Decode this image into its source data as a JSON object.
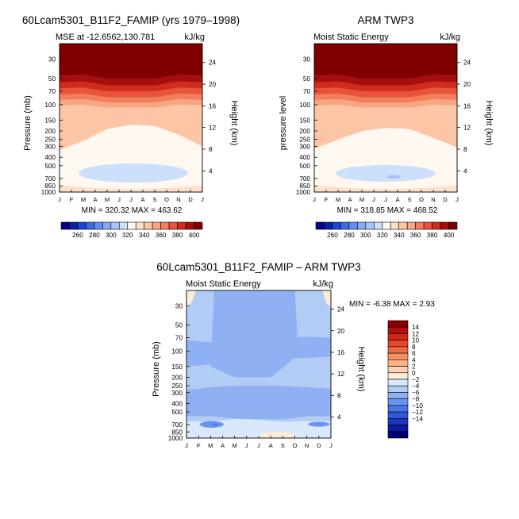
{
  "panels": [
    {
      "title": "60Lcam5301_B11F2_FAMIP (yrs 1979–1998)",
      "subtitle_left": "MSE at -12.6562,130.781",
      "subtitle_right": "kJ/kg",
      "ylabel": "Pressure (mb)",
      "ylabel_right": "Height (km)",
      "stats": "MIN = 320.32  MAX = 463.62"
    },
    {
      "title": "ARM TWP3",
      "subtitle_left": "Moist Static Energy",
      "subtitle_right": "kJ/kg",
      "ylabel": "pressure level",
      "ylabel_right": "Height (km)",
      "stats": "MIN = 318.85  MAX = 468.52"
    },
    {
      "title": "60Lcam5301_B11F2_FAMIP – ARM TWP3",
      "subtitle_left": "Moist Static Energy",
      "subtitle_right": "kJ/kg",
      "ylabel": "Pressure (mb)",
      "ylabel_right": "Height (km)",
      "stats": "MIN =  -6.38  MAX =   2.93"
    }
  ],
  "chart_data": [
    {
      "type": "heatmap",
      "panel": "model",
      "title": "60Lcam5301_B11F2_FAMIP (yrs 1979–1998)",
      "subtitle": "MSE at -12.6562,130.781",
      "units": "kJ/kg",
      "x_ticks": [
        "J",
        "F",
        "M",
        "A",
        "M",
        "J",
        "J",
        "A",
        "S",
        "O",
        "N",
        "D",
        "J"
      ],
      "y_ticks": [
        30,
        50,
        70,
        100,
        150,
        200,
        250,
        300,
        400,
        500,
        700,
        850,
        1000
      ],
      "y_scale": "log",
      "ylim": [
        1000,
        20
      ],
      "height_ticks_km": [
        4,
        8,
        12,
        16,
        20,
        24
      ],
      "ylabel": "Pressure (mb)",
      "ylabel_right": "Height (km)",
      "min": 320.32,
      "max": 463.62,
      "levels": [
        260,
        280,
        300,
        320,
        340,
        360,
        380,
        400
      ],
      "colorbar_labels": [
        "260",
        "280",
        "300",
        "320",
        "340",
        "360",
        "380",
        "400"
      ],
      "colors": [
        "#000080",
        "#0a1ea8",
        "#1a44d0",
        "#3a6ae6",
        "#5f8ef2",
        "#86aaf5",
        "#a9c4f8",
        "#cde0fb",
        "#fff8f0",
        "#fde0c8",
        "#fcc6a6",
        "#f9a582",
        "#f37d5c",
        "#e8533b",
        "#d12c1b",
        "#a50f0f",
        "#800000"
      ]
    },
    {
      "type": "heatmap",
      "panel": "observed",
      "title": "ARM TWP3",
      "subtitle": "Moist Static Energy",
      "units": "kJ/kg",
      "x_ticks": [
        "J",
        "F",
        "M",
        "A",
        "M",
        "J",
        "J",
        "A",
        "S",
        "O",
        "N",
        "D",
        "J"
      ],
      "y_ticks": [
        30,
        50,
        70,
        100,
        150,
        200,
        250,
        300,
        400,
        500,
        700,
        850,
        1000
      ],
      "y_scale": "log",
      "ylim": [
        1000,
        20
      ],
      "height_ticks_km": [
        4,
        8,
        12,
        16,
        20,
        24
      ],
      "ylabel": "pressure level",
      "ylabel_right": "Height (km)",
      "min": 318.85,
      "max": 468.52,
      "levels": [
        260,
        280,
        300,
        320,
        340,
        360,
        380,
        400
      ],
      "colorbar_labels": [
        "260",
        "280",
        "300",
        "320",
        "340",
        "360",
        "380",
        "400"
      ]
    },
    {
      "type": "heatmap",
      "panel": "difference",
      "title": "60Lcam5301_B11F2_FAMIP – ARM TWP3",
      "subtitle": "Moist Static Energy",
      "units": "kJ/kg",
      "x_ticks": [
        "J",
        "F",
        "M",
        "A",
        "M",
        "J",
        "J",
        "A",
        "S",
        "O",
        "N",
        "D",
        "J"
      ],
      "y_ticks": [
        30,
        50,
        70,
        100,
        150,
        200,
        250,
        300,
        400,
        500,
        700,
        850,
        1000
      ],
      "y_scale": "log",
      "ylim": [
        1000,
        20
      ],
      "height_ticks_km": [
        4,
        8,
        12,
        16,
        20,
        24
      ],
      "ylabel": "Pressure (mb)",
      "ylabel_right": "Height (km)",
      "min": -6.38,
      "max": 2.93,
      "levels": [
        -14,
        -12,
        -10,
        -8,
        -6,
        -4,
        -2,
        0,
        2,
        4,
        6,
        8,
        10,
        12,
        14
      ],
      "colorbar_labels": [
        "14",
        "12",
        "10",
        "8",
        "6",
        "4",
        "2",
        "0",
        "−2",
        "−4",
        "−6",
        "−8",
        "−10",
        "−12",
        "−14"
      ],
      "colors": [
        "#8b0000",
        "#b01010",
        "#d02818",
        "#e5492c",
        "#f06a44",
        "#f6915e",
        "#f9b585",
        "#fbd3b2",
        "#fdebd8",
        "#dae8fb",
        "#b3ccf6",
        "#8fb1f3",
        "#6a94ef",
        "#4a75e4",
        "#2f57d8",
        "#1737c2",
        "#0a1a9a",
        "#000070"
      ]
    }
  ]
}
